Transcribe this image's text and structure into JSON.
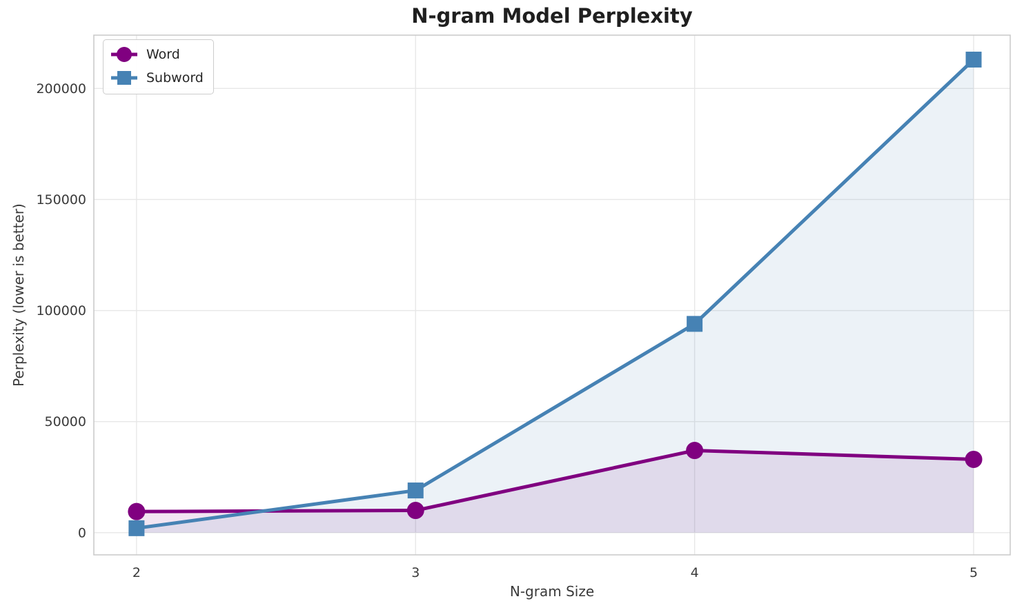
{
  "chart_data": {
    "type": "line",
    "title": "N-gram Model Perplexity",
    "xlabel": "N-gram Size",
    "ylabel": "Perplexity (lower is better)",
    "x": [
      2,
      3,
      4,
      5
    ],
    "series": [
      {
        "name": "Word",
        "color": "#800080",
        "marker": "circle",
        "values": [
          9500,
          10000,
          37000,
          33000
        ]
      },
      {
        "name": "Subword",
        "color": "#4682B4",
        "marker": "square",
        "values": [
          2000,
          19000,
          94000,
          213000
        ]
      }
    ],
    "xticks": [
      2,
      3,
      4,
      5
    ],
    "yticks": [
      0,
      50000,
      100000,
      150000,
      200000
    ],
    "xlim": [
      1.847,
      5.131
    ],
    "ylim": [
      -10000,
      224000
    ],
    "grid": true,
    "grid_color": "#e7e7e7",
    "spine_color": "#cbcbcb",
    "tick_label_color": "#3a3a3a",
    "legend_position": "upper left",
    "fill_alpha": 0.1,
    "fill_to": 0
  }
}
